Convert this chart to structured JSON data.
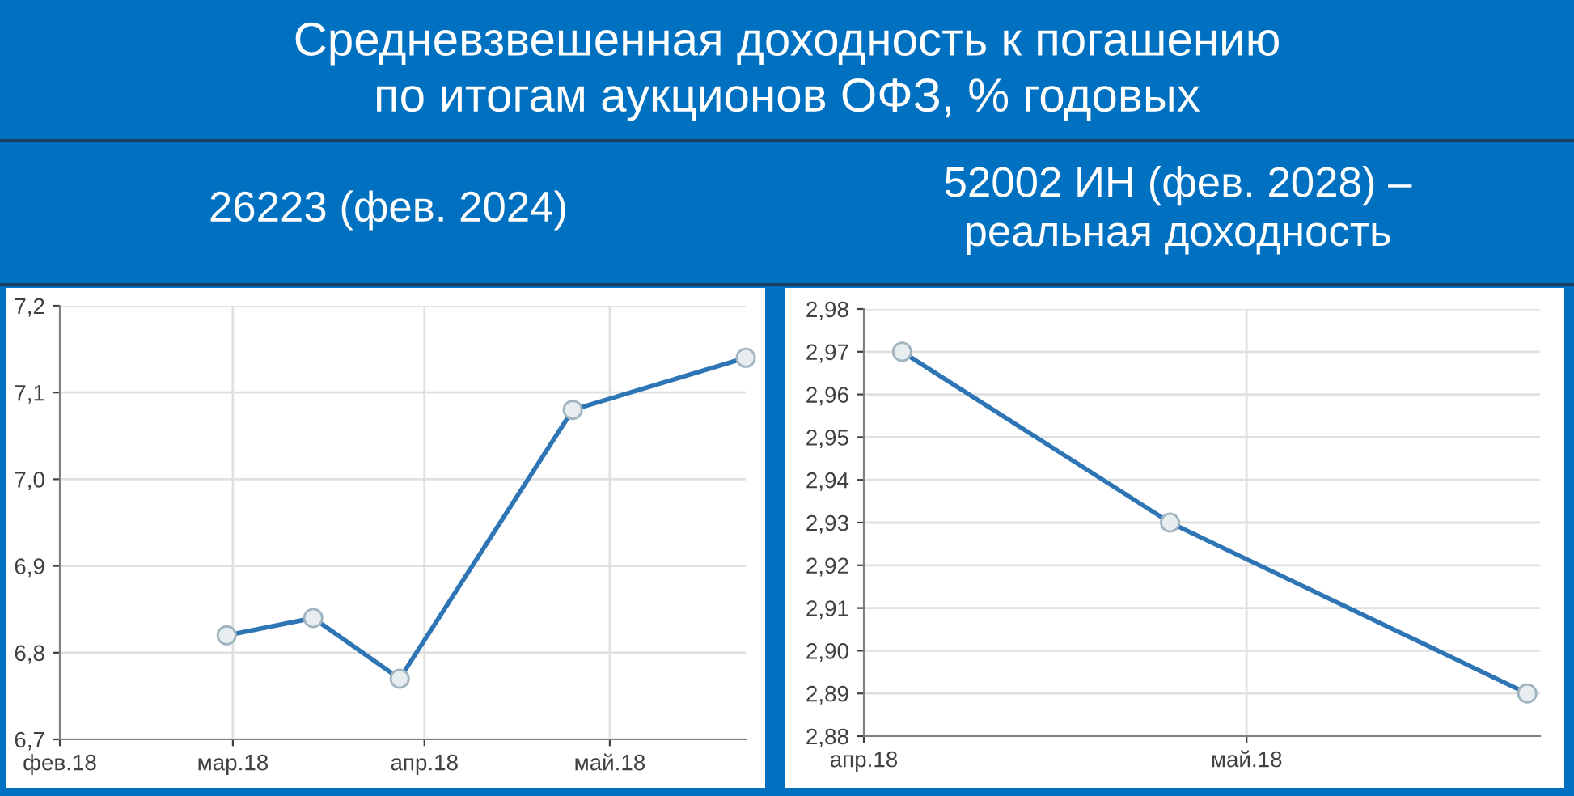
{
  "chart_data": [
    {
      "type": "line",
      "title": "Средневзвешенная доходность к погашению\nпо итогам аукционов ОФЗ, % годовых",
      "subtitle": "26223 (фев. 2024)",
      "x": [
        "2018-02-28",
        "2018-03-14",
        "2018-03-28",
        "2018-04-25",
        "2018-05-23"
      ],
      "series": [
        {
          "color": "#2e75b6",
          "values": [
            6.82,
            6.84,
            6.77,
            7.08,
            7.14
          ]
        }
      ],
      "xlim": [
        "2018-02-01",
        "2018-05-23"
      ],
      "xticks": [
        {
          "value": "2018-02-01",
          "label": "фев.18"
        },
        {
          "value": "2018-03-01",
          "label": "мар.18"
        },
        {
          "value": "2018-04-01",
          "label": "апр.18"
        },
        {
          "value": "2018-05-01",
          "label": "май.18"
        }
      ],
      "ylim": [
        6.7,
        7.2
      ],
      "yticks": [
        {
          "value": 6.7,
          "label": "6,7"
        },
        {
          "value": 6.8,
          "label": "6,8"
        },
        {
          "value": 6.9,
          "label": "6,9"
        },
        {
          "value": 7.0,
          "label": "7,0"
        },
        {
          "value": 7.1,
          "label": "7,1"
        },
        {
          "value": 7.2,
          "label": "7,2"
        }
      ],
      "grid": true,
      "marker": "circle",
      "line_style": "solid",
      "legend": false
    },
    {
      "type": "line",
      "subtitle": "52002 ИН (фев. 2028) –\nреальная доходность",
      "x": [
        "2018-04-04",
        "2018-04-25",
        "2018-05-23"
      ],
      "series": [
        {
          "color": "#2e75b6",
          "values": [
            2.97,
            2.93,
            2.89
          ]
        }
      ],
      "xlim": [
        "2018-04-01",
        "2018-05-24"
      ],
      "xticks": [
        {
          "value": "2018-04-01",
          "label": "апр.18"
        },
        {
          "value": "2018-05-01",
          "label": "май.18"
        }
      ],
      "ylim": [
        2.88,
        2.98
      ],
      "yticks": [
        {
          "value": 2.88,
          "label": "2,88"
        },
        {
          "value": 2.89,
          "label": "2,89"
        },
        {
          "value": 2.9,
          "label": "2,90"
        },
        {
          "value": 2.91,
          "label": "2,91"
        },
        {
          "value": 2.92,
          "label": "2,92"
        },
        {
          "value": 2.93,
          "label": "2,93"
        },
        {
          "value": 2.94,
          "label": "2,94"
        },
        {
          "value": 2.95,
          "label": "2,95"
        },
        {
          "value": 2.96,
          "label": "2,96"
        },
        {
          "value": 2.97,
          "label": "2,97"
        },
        {
          "value": 2.98,
          "label": "2,98"
        }
      ],
      "grid": true,
      "marker": "circle",
      "line_style": "solid",
      "legend": false
    }
  ]
}
